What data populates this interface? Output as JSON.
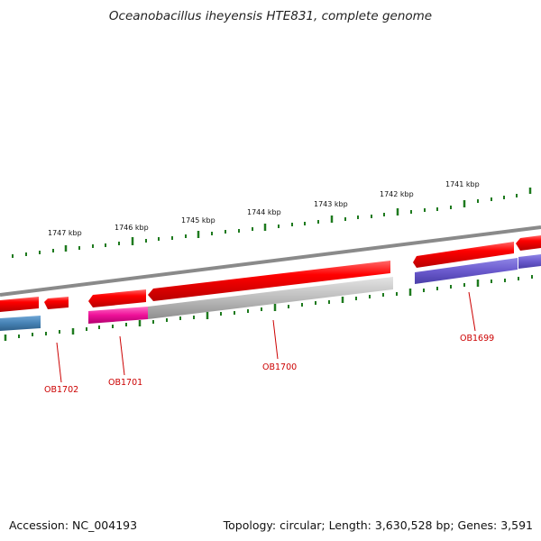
{
  "title": "Oceanobacillus iheyensis HTE831, complete genome",
  "footer": {
    "accession": "Accession: NC_004193",
    "stats": "Topology: circular; Length: 3,630,528 bp; Genes: 3,591"
  },
  "scale": {
    "labels": [
      "1741 kbp",
      "1742 kbp",
      "1743 kbp",
      "1744 kbp",
      "1745 kbp",
      "1746 kbp",
      "1747 kbp"
    ]
  },
  "genes": [
    {
      "label": "OB1699",
      "color": "#cc0000"
    },
    {
      "label": "OB1700",
      "color": "#cc0000"
    },
    {
      "label": "OB1701",
      "color": "#cc0000"
    },
    {
      "label": "OB1702",
      "color": "#cc0000"
    }
  ],
  "colors": {
    "forward_strand": "#ff0000",
    "backbone": "#8a8a8a",
    "tick": "#1e7a1e",
    "cog_purple": "#6a5acd",
    "cog_blue": "#4682b4",
    "cog_magenta": "#ee1199",
    "cog_gray": "#b0b0b0"
  }
}
